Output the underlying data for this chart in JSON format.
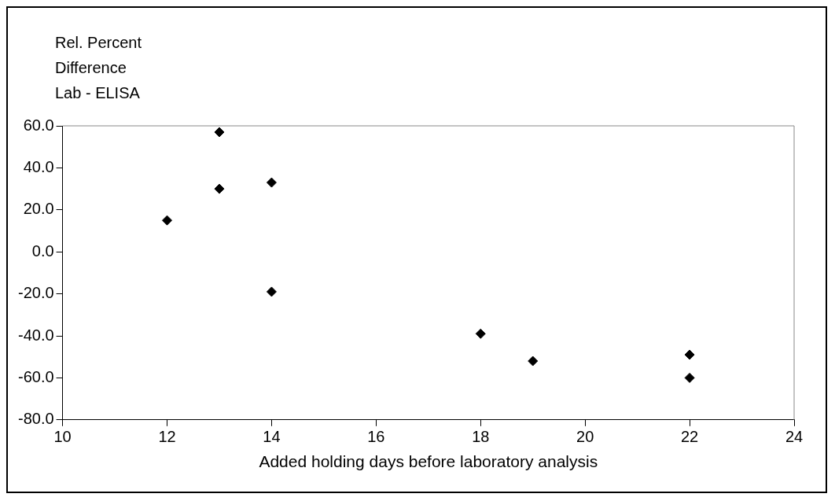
{
  "chart_data": {
    "type": "scatter",
    "ylabel": "Rel. Percent\nDifference\nLab - ELISA",
    "xlabel": "Added holding days before laboratory analysis",
    "x": [
      12,
      13,
      13,
      14,
      14,
      18,
      19,
      22,
      22
    ],
    "values": [
      15,
      57,
      30,
      33,
      -19,
      -39,
      -52,
      -49,
      -60
    ],
    "color": "#000000",
    "marker": "diamond",
    "grid": false,
    "legend": false,
    "xlim": [
      10,
      24
    ],
    "xticks": [
      10,
      12,
      14,
      16,
      18,
      20,
      22,
      24
    ],
    "ylim": [
      -80,
      60
    ],
    "yticks": [
      {
        "value": 60,
        "label": "60.0"
      },
      {
        "value": 40,
        "label": "40.0"
      },
      {
        "value": 20,
        "label": "20.0"
      },
      {
        "value": 0,
        "label": "0.0"
      },
      {
        "value": -20,
        "label": "-20.0"
      },
      {
        "value": -40,
        "label": "-40.0"
      },
      {
        "value": -60,
        "label": "-60.0"
      },
      {
        "value": -80,
        "label": "-80.0"
      }
    ]
  }
}
